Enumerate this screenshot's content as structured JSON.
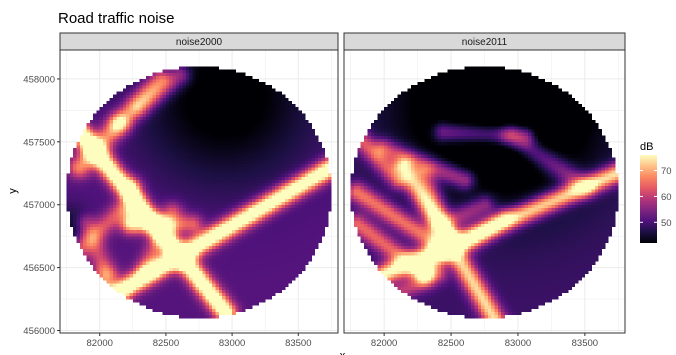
{
  "chart_data": {
    "type": "heatmap",
    "title": "Road traffic noise",
    "xlabel": "x",
    "ylabel": "y",
    "facets": [
      {
        "name": "noise2000"
      },
      {
        "name": "noise2011"
      }
    ],
    "xlim": [
      81700,
      83800
    ],
    "ylim": [
      455980,
      458230
    ],
    "x_ticks": [
      82000,
      82500,
      83000,
      83500
    ],
    "x_tick_labels": [
      "82000",
      "82500",
      "83000",
      "83500"
    ],
    "y_ticks": [
      456000,
      456500,
      457000,
      457500,
      458000
    ],
    "y_tick_labels": [
      "456000",
      "456500",
      "457000",
      "457500",
      "458000"
    ],
    "circle_center": [
      82750,
      457100
    ],
    "circle_radius": 1000,
    "legend": {
      "title": "dB",
      "placement": "right",
      "min": 42,
      "max": 76,
      "breaks": [
        50,
        60,
        70
      ],
      "break_labels": [
        "50",
        "60",
        "70"
      ]
    },
    "colormap": [
      "#000004",
      "#1c1044",
      "#4f127b",
      "#812581",
      "#b5367a",
      "#e55964",
      "#fb8761",
      "#fec287",
      "#fcfdbf"
    ],
    "grid": true,
    "panel_background": "#ffffff",
    "strip_background": "#d9d9d9",
    "strip_border": "#333333",
    "grid_color": "#ebebeb"
  }
}
